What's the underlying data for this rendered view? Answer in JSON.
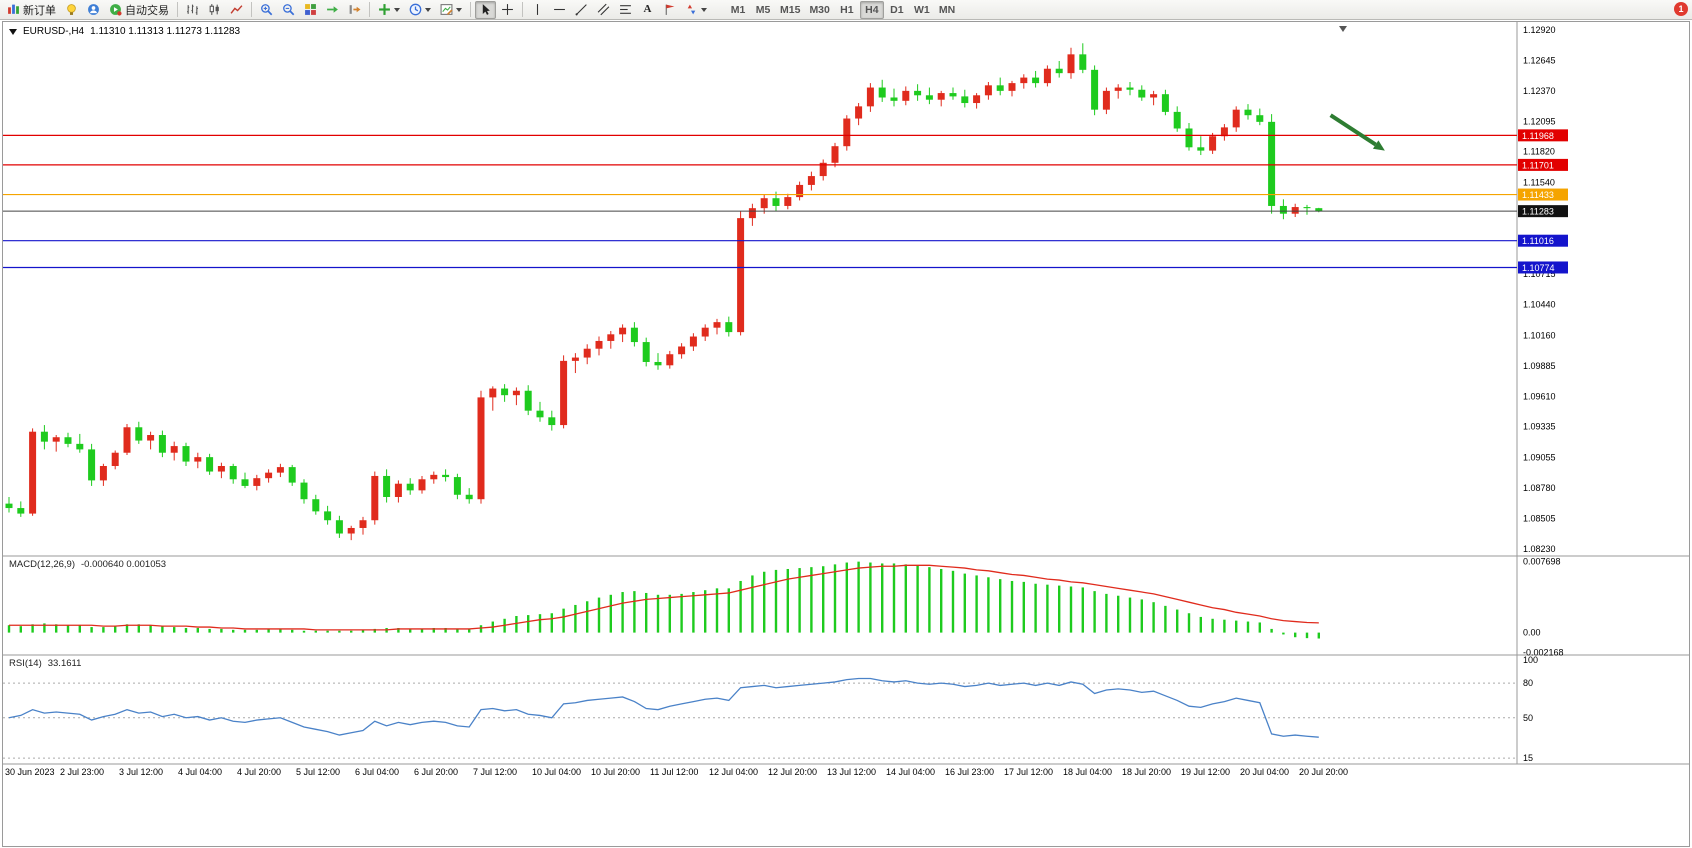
{
  "toolbar": {
    "new_order_label": "新订单",
    "autotrading_label": "自动交易",
    "text_tool_glyph": "A",
    "timeframes": [
      "M1",
      "M5",
      "M15",
      "M30",
      "H1",
      "H4",
      "D1",
      "W1",
      "MN"
    ],
    "active_timeframe": "H4",
    "icons": [
      "new-order-icon",
      "metaeditor-icon",
      "community-icon",
      "autotrading-icon",
      "bar-chart-icon",
      "candlestick-chart-icon",
      "line-chart-icon",
      "zoom-in-icon",
      "zoom-out-icon",
      "tile-windows-icon",
      "auto-scroll-icon",
      "chart-shift-icon",
      "indicators-icon",
      "periods-icon",
      "templates-icon",
      "cursor-icon",
      "crosshair-icon",
      "vertical-line-icon",
      "horizontal-line-icon",
      "trendline-icon",
      "channel-icon",
      "fibonacci-icon",
      "text-icon",
      "text-label-icon",
      "arrows-icon"
    ]
  },
  "notification": {
    "count": "1"
  },
  "chart": {
    "symbol_period": "EURUSD-,H4",
    "ohlc": "1.11310 1.11313 1.11273 1.11283"
  },
  "price_axis": {
    "labels": [
      "1.12920",
      "1.12645",
      "1.12370",
      "1.12095",
      "1.11820",
      "1.11540",
      "1.11265",
      "1.10990",
      "1.10715",
      "1.10440",
      "1.10160",
      "1.09885",
      "1.09610",
      "1.09335",
      "1.09055",
      "1.08780",
      "1.08505",
      "1.08230"
    ]
  },
  "hlines": [
    {
      "label": "1.11968",
      "price": 1.11968,
      "color": "#e20000"
    },
    {
      "label": "1.11701",
      "price": 1.11701,
      "color": "#e20000"
    },
    {
      "label": "1.11433",
      "price": 1.11433,
      "color": "#f5a400"
    },
    {
      "label": "1.11016",
      "price": 1.11016,
      "color": "#1414cc"
    },
    {
      "label": "1.10774",
      "price": 1.10774,
      "color": "#1414cc"
    }
  ],
  "current_price": {
    "label": "1.11283",
    "price": 1.11283,
    "color": "#111111"
  },
  "macd_panel": {
    "title": "MACD(12,26,9)",
    "values": "-0.000640 0.001053",
    "axis": [
      "0.007698",
      "0.00",
      "-0.002168"
    ]
  },
  "rsi_panel": {
    "title": "RSI(14)",
    "value": "33.1611",
    "axis": [
      "100",
      "80",
      "50",
      "15"
    ],
    "levels": [
      80,
      50,
      15
    ]
  },
  "time_axis": [
    "30 Jun 2023",
    "2 Jul 23:00",
    "3 Jul 12:00",
    "4 Jul 04:00",
    "4 Jul 20:00",
    "5 Jul 12:00",
    "6 Jul 04:00",
    "6 Jul 20:00",
    "7 Jul 12:00",
    "10 Jul 04:00",
    "10 Jul 20:00",
    "11 Jul 12:00",
    "12 Jul 04:00",
    "12 Jul 20:00",
    "13 Jul 12:00",
    "14 Jul 04:00",
    "16 Jul 23:00",
    "17 Jul 12:00",
    "18 Jul 04:00",
    "18 Jul 20:00",
    "19 Jul 12:00",
    "20 Jul 04:00",
    "20 Jul 20:00"
  ],
  "annotations": {
    "trend_arrow": {
      "from": {
        "i": 112,
        "price": 1.1215
      },
      "to": {
        "i": 116.6,
        "price": 1.1183
      },
      "color": "#2e7d32"
    }
  },
  "chart_data": {
    "type": "candlestick",
    "symbol": "EURUSD-",
    "period": "H4",
    "ylim": [
      1.0823,
      1.1292
    ],
    "up_color": "#e02b1d",
    "down_color": "#1ecb1e",
    "label_step": 5,
    "ohlc": [
      [
        1.0864,
        1.087,
        1.0856,
        1.086
      ],
      [
        1.086,
        1.0866,
        1.0852,
        1.0855
      ],
      [
        1.0855,
        1.0932,
        1.0853,
        1.0929
      ],
      [
        1.0929,
        1.0935,
        1.0913,
        1.092
      ],
      [
        1.092,
        1.0926,
        1.0911,
        1.0924
      ],
      [
        1.0924,
        1.0928,
        1.0915,
        1.0918
      ],
      [
        1.0918,
        1.0927,
        1.091,
        1.0913
      ],
      [
        1.0913,
        1.0918,
        1.088,
        1.0885
      ],
      [
        1.0885,
        1.09,
        1.088,
        1.0898
      ],
      [
        1.0898,
        1.0912,
        1.0895,
        1.091
      ],
      [
        1.091,
        1.0936,
        1.0908,
        1.0933
      ],
      [
        1.0933,
        1.0938,
        1.0918,
        1.0921
      ],
      [
        1.0921,
        1.0929,
        1.0913,
        1.0926
      ],
      [
        1.0926,
        1.093,
        1.0906,
        1.091
      ],
      [
        1.091,
        1.092,
        1.0903,
        1.0916
      ],
      [
        1.0916,
        1.0919,
        1.0898,
        1.0902
      ],
      [
        1.0902,
        1.091,
        1.0896,
        1.0906
      ],
      [
        1.0906,
        1.0909,
        1.089,
        1.0893
      ],
      [
        1.0893,
        1.0901,
        1.0887,
        1.0898
      ],
      [
        1.0898,
        1.09,
        1.0882,
        1.0886
      ],
      [
        1.0886,
        1.0892,
        1.0878,
        1.088
      ],
      [
        1.088,
        1.089,
        1.0876,
        1.0887
      ],
      [
        1.0887,
        1.0895,
        1.0883,
        1.0892
      ],
      [
        1.0892,
        1.09,
        1.0888,
        1.0897
      ],
      [
        1.0897,
        1.0899,
        1.088,
        1.0883
      ],
      [
        1.0883,
        1.0886,
        1.0864,
        1.0868
      ],
      [
        1.0868,
        1.0872,
        1.0854,
        1.0857
      ],
      [
        1.0857,
        1.0862,
        1.0845,
        1.0849
      ],
      [
        1.0849,
        1.0853,
        1.0833,
        1.0837
      ],
      [
        1.0837,
        1.0844,
        1.0831,
        1.0842
      ],
      [
        1.0842,
        1.0852,
        1.0836,
        1.0849
      ],
      [
        1.0849,
        1.0893,
        1.0845,
        1.0889
      ],
      [
        1.0889,
        1.0895,
        1.0865,
        1.087
      ],
      [
        1.087,
        1.0885,
        1.0865,
        1.0882
      ],
      [
        1.0882,
        1.0887,
        1.0872,
        1.0876
      ],
      [
        1.0876,
        1.0889,
        1.0873,
        1.0886
      ],
      [
        1.0886,
        1.0893,
        1.0882,
        1.089
      ],
      [
        1.089,
        1.0895,
        1.0884,
        1.0888
      ],
      [
        1.0888,
        1.0891,
        1.0868,
        1.0872
      ],
      [
        1.0872,
        1.0878,
        1.0864,
        1.0868
      ],
      [
        1.0868,
        1.0966,
        1.0864,
        1.096
      ],
      [
        1.096,
        1.097,
        1.0948,
        1.0968
      ],
      [
        1.0968,
        1.0972,
        1.0956,
        1.0962
      ],
      [
        1.0962,
        1.0969,
        1.0953,
        1.0966
      ],
      [
        1.0966,
        1.0971,
        1.0944,
        1.0948
      ],
      [
        1.0948,
        1.0956,
        1.0938,
        1.0942
      ],
      [
        1.0942,
        1.0948,
        1.093,
        1.0935
      ],
      [
        1.0935,
        1.0998,
        1.0932,
        1.0993
      ],
      [
        1.0993,
        1.1,
        1.0982,
        1.0996
      ],
      [
        1.0996,
        1.1008,
        1.099,
        1.1004
      ],
      [
        1.1004,
        1.1015,
        1.0998,
        1.1011
      ],
      [
        1.1011,
        1.102,
        1.1004,
        1.1017
      ],
      [
        1.1017,
        1.1026,
        1.101,
        1.1023
      ],
      [
        1.1023,
        1.1028,
        1.1006,
        1.101
      ],
      [
        1.101,
        1.1014,
        1.0988,
        1.0992
      ],
      [
        1.0992,
        1.1,
        1.0985,
        1.0989
      ],
      [
        1.0989,
        1.1002,
        1.0986,
        1.0999
      ],
      [
        1.0999,
        1.1009,
        1.0995,
        1.1006
      ],
      [
        1.1006,
        1.1018,
        1.1002,
        1.1015
      ],
      [
        1.1015,
        1.1026,
        1.1011,
        1.1023
      ],
      [
        1.1023,
        1.1031,
        1.1017,
        1.1028
      ],
      [
        1.1028,
        1.1033,
        1.1015,
        1.1019
      ],
      [
        1.1019,
        1.1128,
        1.1016,
        1.1122
      ],
      [
        1.1122,
        1.1135,
        1.1115,
        1.1131
      ],
      [
        1.1131,
        1.1143,
        1.1126,
        1.114
      ],
      [
        1.114,
        1.1146,
        1.1128,
        1.1133
      ],
      [
        1.1133,
        1.1144,
        1.113,
        1.1141
      ],
      [
        1.1141,
        1.1155,
        1.1138,
        1.1152
      ],
      [
        1.1152,
        1.1164,
        1.1147,
        1.116
      ],
      [
        1.116,
        1.1175,
        1.1156,
        1.1172
      ],
      [
        1.1172,
        1.119,
        1.1168,
        1.1187
      ],
      [
        1.1187,
        1.1215,
        1.1183,
        1.1212
      ],
      [
        1.1212,
        1.1226,
        1.1206,
        1.1223
      ],
      [
        1.1223,
        1.1244,
        1.1218,
        1.124
      ],
      [
        1.124,
        1.1247,
        1.1227,
        1.1231
      ],
      [
        1.1231,
        1.1239,
        1.1223,
        1.1228
      ],
      [
        1.1228,
        1.1241,
        1.1224,
        1.1237
      ],
      [
        1.1237,
        1.1243,
        1.1228,
        1.1233
      ],
      [
        1.1233,
        1.124,
        1.1225,
        1.1229
      ],
      [
        1.1229,
        1.1237,
        1.1223,
        1.1235
      ],
      [
        1.1235,
        1.124,
        1.1229,
        1.1232
      ],
      [
        1.1232,
        1.1238,
        1.1222,
        1.1226
      ],
      [
        1.1226,
        1.1235,
        1.1221,
        1.1233
      ],
      [
        1.1233,
        1.1245,
        1.1229,
        1.1242
      ],
      [
        1.1242,
        1.1249,
        1.1233,
        1.1237
      ],
      [
        1.1237,
        1.1246,
        1.1232,
        1.1244
      ],
      [
        1.1244,
        1.1252,
        1.1239,
        1.1249
      ],
      [
        1.1249,
        1.1255,
        1.124,
        1.1244
      ],
      [
        1.1244,
        1.126,
        1.1241,
        1.1257
      ],
      [
        1.1257,
        1.1264,
        1.1249,
        1.1253
      ],
      [
        1.1253,
        1.1276,
        1.1248,
        1.127
      ],
      [
        1.127,
        1.128,
        1.1253,
        1.1256
      ],
      [
        1.1256,
        1.126,
        1.1215,
        1.122
      ],
      [
        1.122,
        1.124,
        1.1216,
        1.1237
      ],
      [
        1.1237,
        1.1243,
        1.123,
        1.124
      ],
      [
        1.124,
        1.1245,
        1.1233,
        1.1238
      ],
      [
        1.1238,
        1.1242,
        1.1228,
        1.1231
      ],
      [
        1.1231,
        1.1237,
        1.1224,
        1.1234
      ],
      [
        1.1234,
        1.1238,
        1.1215,
        1.1218
      ],
      [
        1.1218,
        1.1223,
        1.12,
        1.1203
      ],
      [
        1.1203,
        1.1208,
        1.1183,
        1.1186
      ],
      [
        1.1186,
        1.1196,
        1.1179,
        1.1183
      ],
      [
        1.1183,
        1.1199,
        1.118,
        1.1196
      ],
      [
        1.1196,
        1.1207,
        1.1192,
        1.1204
      ],
      [
        1.1204,
        1.1223,
        1.12,
        1.122
      ],
      [
        1.122,
        1.1225,
        1.1211,
        1.1215
      ],
      [
        1.1215,
        1.1221,
        1.1206,
        1.1209
      ],
      [
        1.1209,
        1.1216,
        1.1126,
        1.1133
      ],
      [
        1.1133,
        1.1139,
        1.1121,
        1.1126
      ],
      [
        1.1126,
        1.1135,
        1.1123,
        1.1132
      ],
      [
        1.1132,
        1.1134,
        1.1125,
        1.1131
      ],
      [
        1.1131,
        1.11313,
        1.11273,
        1.11283
      ]
    ],
    "indicators": {
      "macd": {
        "params": "12,26,9",
        "histogram_color": "#1ecb1e",
        "signal_color": "#e02b1d",
        "last_values": [
          -0.00064,
          0.001053
        ],
        "histogram": [
          0.0008,
          0.0007,
          0.0009,
          0.001,
          0.0009,
          0.0008,
          0.0008,
          0.0006,
          0.0006,
          0.0007,
          0.0009,
          0.0009,
          0.0008,
          0.0007,
          0.0006,
          0.0005,
          0.0005,
          0.0004,
          0.0004,
          0.0003,
          0.0003,
          0.0003,
          0.0004,
          0.0004,
          0.0003,
          0.0002,
          0.0002,
          0.0002,
          0.0002,
          0.0002,
          0.0003,
          0.0004,
          0.0005,
          0.0005,
          0.0004,
          0.0004,
          0.0005,
          0.0005,
          0.0004,
          0.0004,
          0.0008,
          0.0012,
          0.0015,
          0.0018,
          0.0019,
          0.002,
          0.0021,
          0.0026,
          0.003,
          0.0034,
          0.0038,
          0.0041,
          0.0044,
          0.0045,
          0.0043,
          0.0041,
          0.0041,
          0.0042,
          0.0044,
          0.0046,
          0.0048,
          0.0048,
          0.0056,
          0.0062,
          0.0066,
          0.0068,
          0.0069,
          0.007,
          0.0071,
          0.0072,
          0.0074,
          0.0076,
          0.007698,
          0.0076,
          0.0075,
          0.0075,
          0.0074,
          0.0073,
          0.0071,
          0.0069,
          0.0067,
          0.0064,
          0.0062,
          0.006,
          0.0058,
          0.0056,
          0.0055,
          0.0053,
          0.0052,
          0.0051,
          0.005,
          0.0049,
          0.0045,
          0.0042,
          0.004,
          0.0038,
          0.0036,
          0.0033,
          0.0029,
          0.0025,
          0.0021,
          0.0017,
          0.0015,
          0.0014,
          0.0013,
          0.0012,
          0.0011,
          0.0004,
          -0.0002,
          -0.0005,
          -0.0006,
          -0.00064
        ],
        "signal": [
          0.0008,
          0.0008,
          0.0008,
          0.0008,
          0.0008,
          0.0008,
          0.0008,
          0.0008,
          0.0007,
          0.0007,
          0.0008,
          0.0008,
          0.0008,
          0.0007,
          0.0007,
          0.0007,
          0.0006,
          0.0006,
          0.0005,
          0.0005,
          0.0004,
          0.0004,
          0.0004,
          0.0004,
          0.0004,
          0.0004,
          0.0003,
          0.0003,
          0.0003,
          0.0003,
          0.0003,
          0.0003,
          0.0003,
          0.0004,
          0.0004,
          0.0004,
          0.0004,
          0.0004,
          0.0004,
          0.0004,
          0.0005,
          0.0006,
          0.0008,
          0.001,
          0.0012,
          0.0014,
          0.0015,
          0.0017,
          0.002,
          0.0023,
          0.0026,
          0.0029,
          0.0032,
          0.0034,
          0.0036,
          0.0037,
          0.0038,
          0.0039,
          0.004,
          0.0041,
          0.0042,
          0.0043,
          0.0046,
          0.0049,
          0.0052,
          0.0055,
          0.0058,
          0.006,
          0.0062,
          0.0064,
          0.0066,
          0.0068,
          0.007,
          0.0071,
          0.0072,
          0.0072,
          0.0073,
          0.0073,
          0.0073,
          0.0072,
          0.0071,
          0.007,
          0.0068,
          0.0067,
          0.0065,
          0.0063,
          0.0062,
          0.006,
          0.0058,
          0.0057,
          0.0055,
          0.0054,
          0.0052,
          0.005,
          0.0048,
          0.0046,
          0.0044,
          0.0042,
          0.0039,
          0.0036,
          0.0033,
          0.003,
          0.0027,
          0.0025,
          0.0022,
          0.002,
          0.0018,
          0.0015,
          0.0013,
          0.0012,
          0.0011,
          0.001053
        ]
      },
      "rsi": {
        "period": 14,
        "color": "#4a82c8",
        "last_value": 33.1611,
        "values": [
          50,
          52,
          57,
          54,
          55,
          54,
          53,
          48,
          51,
          53,
          57,
          54,
          55,
          51,
          53,
          50,
          51,
          48,
          50,
          47,
          46,
          48,
          49,
          50,
          46,
          42,
          40,
          38,
          35,
          37,
          39,
          47,
          43,
          46,
          44,
          46,
          47,
          46,
          43,
          42,
          57,
          58,
          56,
          57,
          53,
          52,
          50,
          62,
          63,
          65,
          66,
          67,
          68,
          64,
          58,
          57,
          60,
          62,
          64,
          66,
          67,
          65,
          76,
          77,
          78,
          76,
          77,
          78,
          79,
          80,
          81,
          83,
          84,
          84,
          82,
          81,
          82,
          80,
          79,
          80,
          79,
          77,
          78,
          80,
          78,
          79,
          80,
          78,
          80,
          78,
          81,
          79,
          71,
          74,
          75,
          74,
          72,
          73,
          69,
          65,
          60,
          59,
          62,
          64,
          67,
          65,
          63,
          36,
          34,
          35,
          34,
          33.16
        ]
      }
    }
  }
}
